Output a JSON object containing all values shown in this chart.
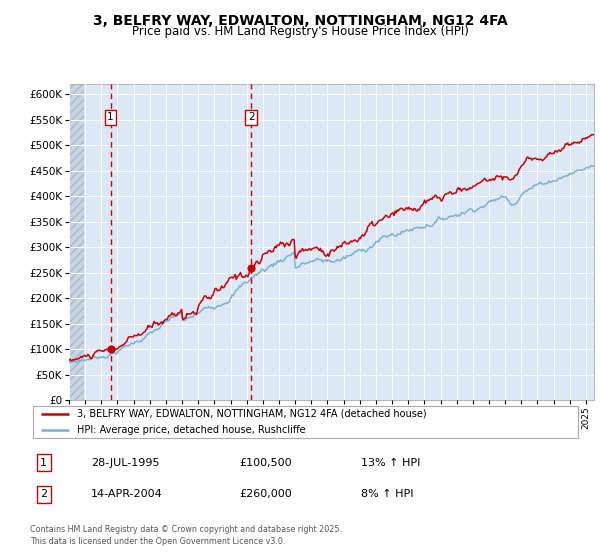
{
  "title_line1": "3, BELFRY WAY, EDWALTON, NOTTINGHAM, NG12 4FA",
  "title_line2": "Price paid vs. HM Land Registry's House Price Index (HPI)",
  "legend_label1": "3, BELFRY WAY, EDWALTON, NOTTINGHAM, NG12 4FA (detached house)",
  "legend_label2": "HPI: Average price, detached house, Rushcliffe",
  "sale1_date": "28-JUL-1995",
  "sale1_price": 100500,
  "sale1_hpi": "13% ↑ HPI",
  "sale2_date": "14-APR-2004",
  "sale2_price": 260000,
  "sale2_hpi": "8% ↑ HPI",
  "footer": "Contains HM Land Registry data © Crown copyright and database right 2025.\nThis data is licensed under the Open Government Licence v3.0.",
  "red_color": "#cc0000",
  "blue_color": "#7ab0d4",
  "bg_color": "#dce8f5",
  "hatch_bg_color": "#c8d4e4",
  "ylim": [
    0,
    620000
  ],
  "ytick_step": 50000,
  "sale1_x": 1995.57,
  "sale2_x": 2004.29,
  "xmin": 1993.0,
  "xmax": 2025.5
}
